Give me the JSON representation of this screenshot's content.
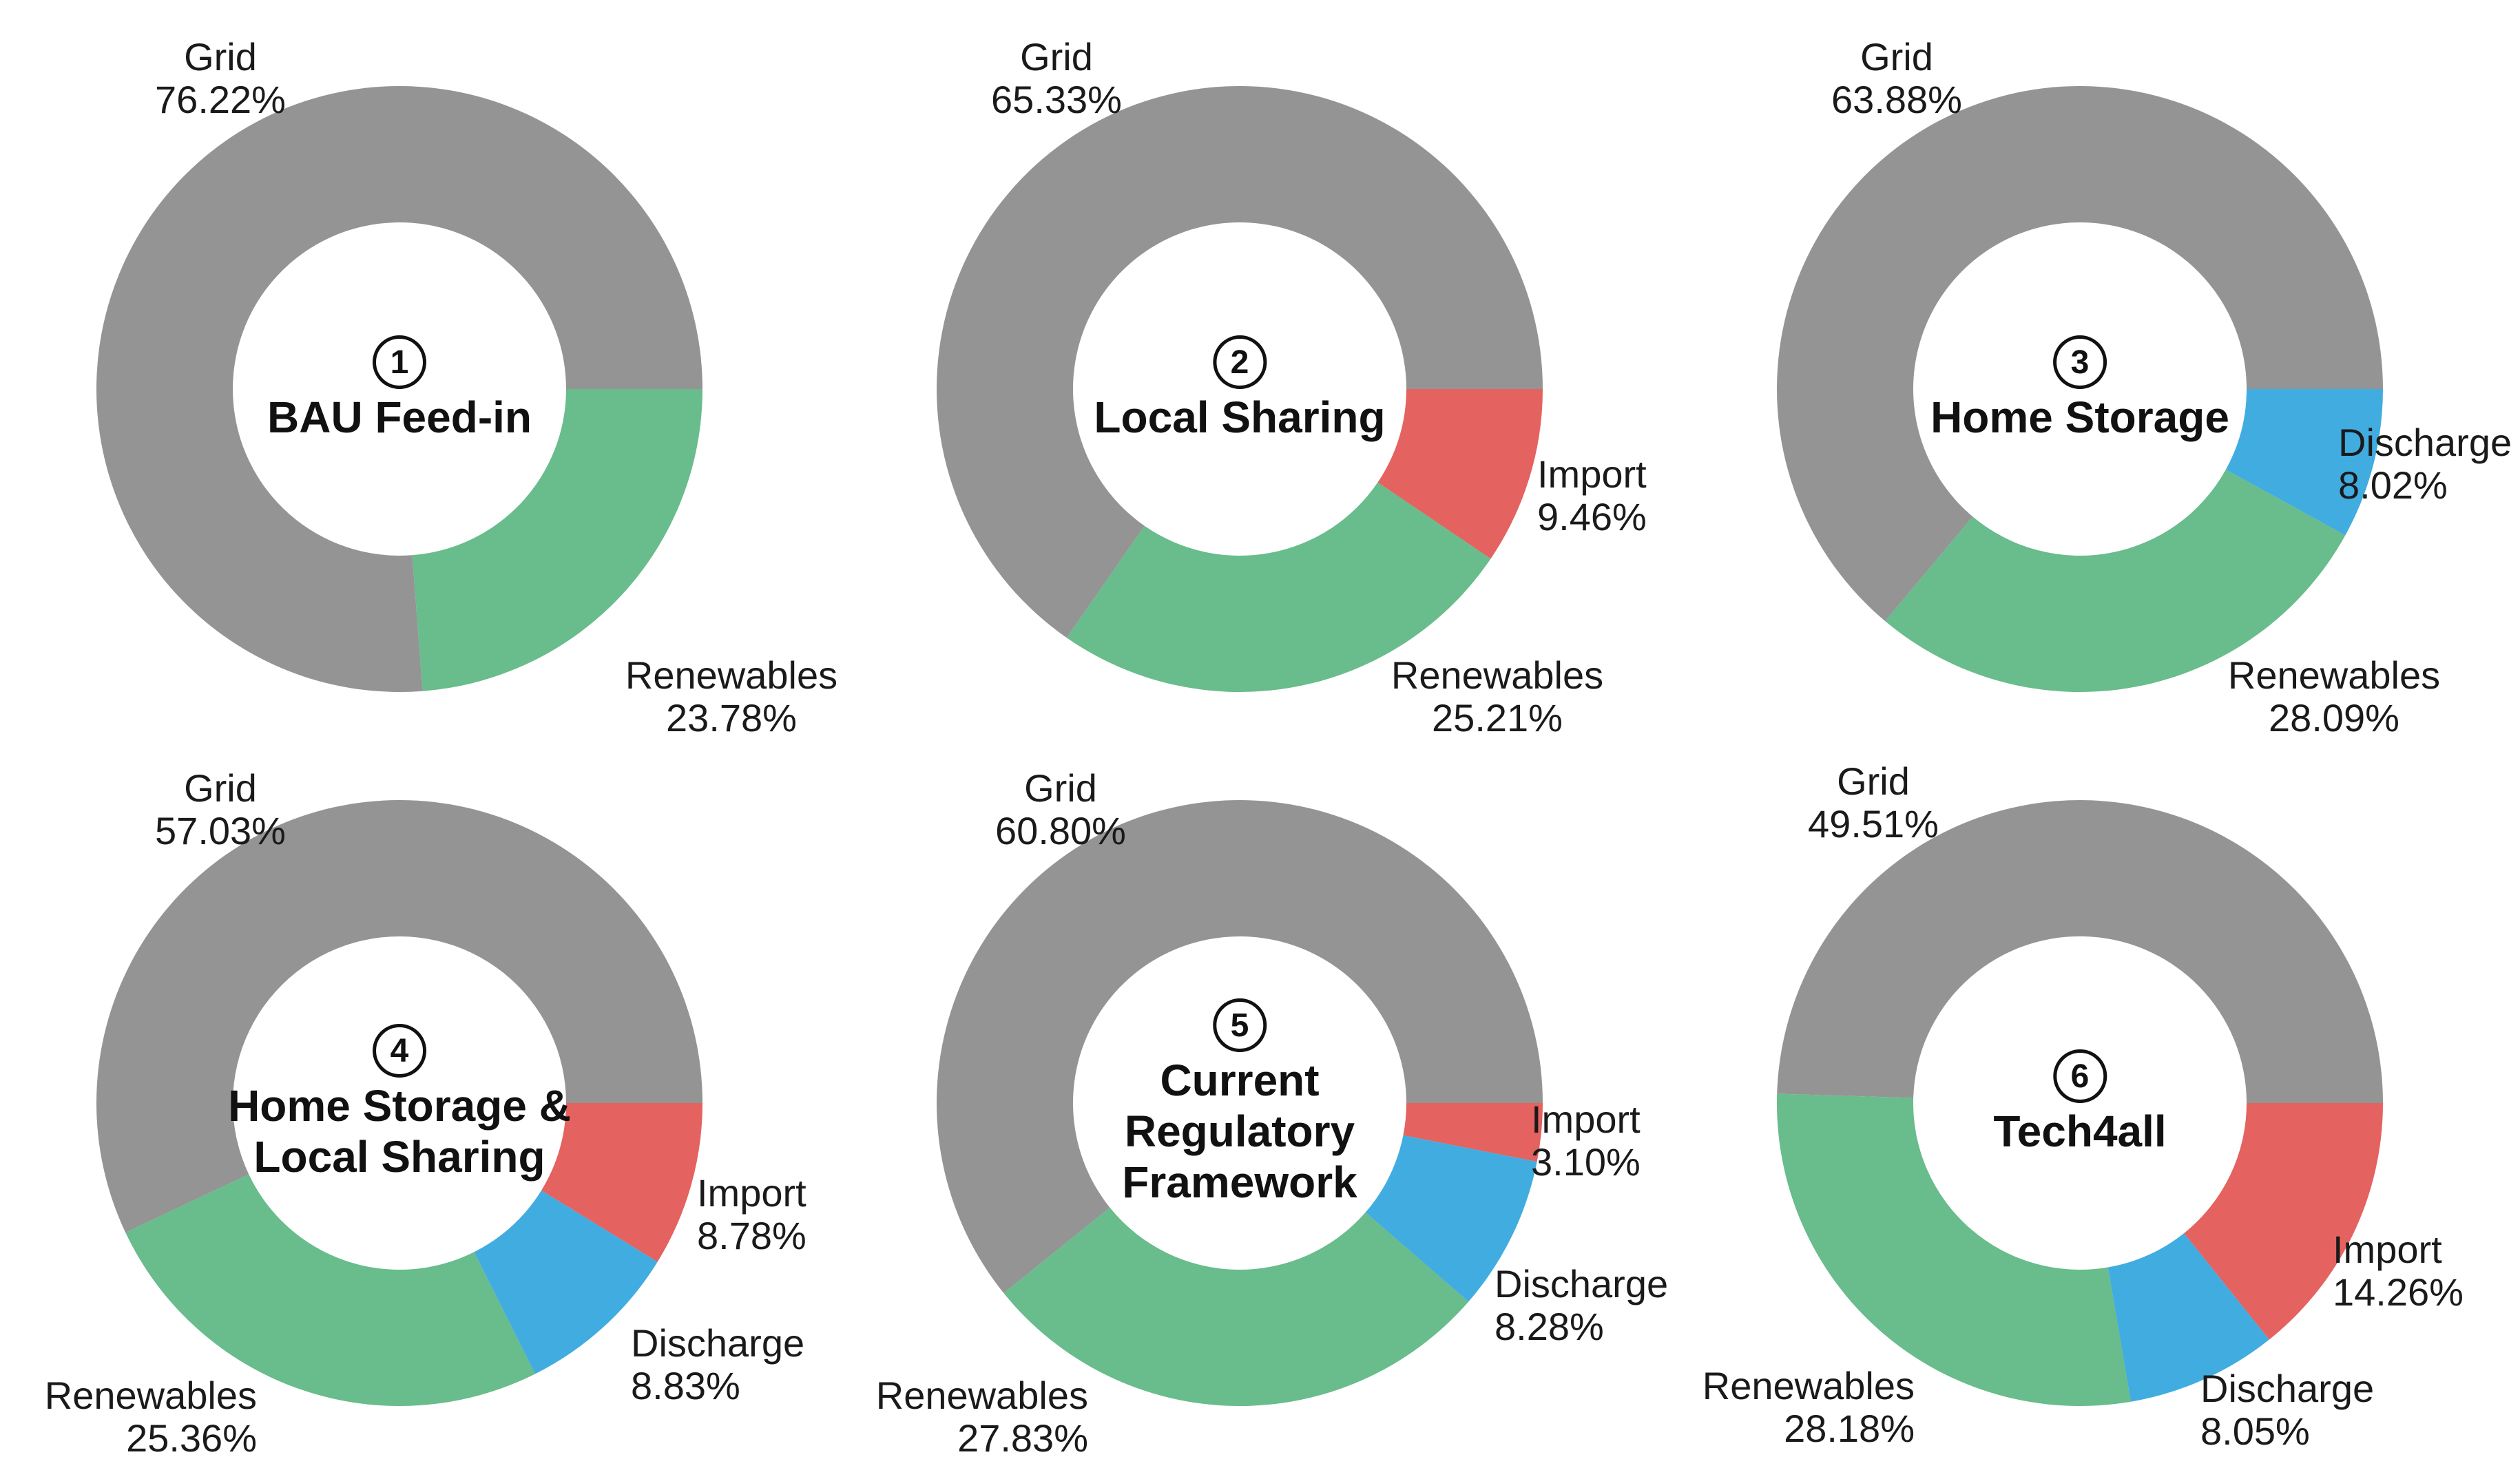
{
  "page": {
    "background": "#ffffff",
    "description": "Six donut charts of energy supply shares per scenario"
  },
  "colors": {
    "grid": "#949494",
    "renewables": "#69BC8B",
    "discharge": "#41ACE0",
    "import": "#E4625F",
    "text": "#1a1a1a",
    "title": "#111111"
  },
  "chart_data": [
    {
      "type": "pie",
      "subtype": "donut",
      "start_angle_deg": 0,
      "direction": "counterclockwise",
      "donut_hole_ratio": 0.55,
      "legend_position": "none",
      "number": "1",
      "title": "BAU Feed-in",
      "title_lines": [
        "BAU Feed-in"
      ],
      "slices": [
        {
          "name": "Grid",
          "value": 76.22,
          "pct_label": "76.22%",
          "color_key": "grid"
        },
        {
          "name": "Renewables",
          "value": 23.78,
          "pct_label": "23.78%",
          "color_key": "renewables"
        }
      ]
    },
    {
      "type": "pie",
      "subtype": "donut",
      "start_angle_deg": 0,
      "direction": "counterclockwise",
      "donut_hole_ratio": 0.55,
      "legend_position": "none",
      "number": "2",
      "title": "Local Sharing",
      "title_lines": [
        "Local Sharing"
      ],
      "slices": [
        {
          "name": "Grid",
          "value": 65.33,
          "pct_label": "65.33%",
          "color_key": "grid"
        },
        {
          "name": "Renewables",
          "value": 25.21,
          "pct_label": "25.21%",
          "color_key": "renewables"
        },
        {
          "name": "Import",
          "value": 9.46,
          "pct_label": "9.46%",
          "color_key": "import"
        }
      ]
    },
    {
      "type": "pie",
      "subtype": "donut",
      "start_angle_deg": 0,
      "direction": "counterclockwise",
      "donut_hole_ratio": 0.55,
      "legend_position": "none",
      "number": "3",
      "title": "Home Storage",
      "title_lines": [
        "Home Storage"
      ],
      "slices": [
        {
          "name": "Grid",
          "value": 63.88,
          "pct_label": "63.88%",
          "color_key": "grid"
        },
        {
          "name": "Renewables",
          "value": 28.09,
          "pct_label": "28.09%",
          "color_key": "renewables"
        },
        {
          "name": "Discharge",
          "value": 8.02,
          "pct_label": "8.02%",
          "color_key": "discharge"
        }
      ]
    },
    {
      "type": "pie",
      "subtype": "donut",
      "start_angle_deg": 0,
      "direction": "counterclockwise",
      "donut_hole_ratio": 0.55,
      "legend_position": "none",
      "number": "4",
      "title": "Home Storage & Local Sharing",
      "title_lines": [
        "Home Storage &",
        "Local Sharing"
      ],
      "slices": [
        {
          "name": "Grid",
          "value": 57.03,
          "pct_label": "57.03%",
          "color_key": "grid"
        },
        {
          "name": "Renewables",
          "value": 25.36,
          "pct_label": "25.36%",
          "color_key": "renewables"
        },
        {
          "name": "Discharge",
          "value": 8.83,
          "pct_label": "8.83%",
          "color_key": "discharge"
        },
        {
          "name": "Import",
          "value": 8.78,
          "pct_label": "8.78%",
          "color_key": "import"
        }
      ]
    },
    {
      "type": "pie",
      "subtype": "donut",
      "start_angle_deg": 0,
      "direction": "counterclockwise",
      "donut_hole_ratio": 0.55,
      "legend_position": "none",
      "number": "5",
      "title": "Current Regulatory Framework",
      "title_lines": [
        "Current",
        "Regulatory",
        "Framework"
      ],
      "slices": [
        {
          "name": "Grid",
          "value": 60.8,
          "pct_label": "60.80%",
          "color_key": "grid"
        },
        {
          "name": "Renewables",
          "value": 27.83,
          "pct_label": "27.83%",
          "color_key": "renewables"
        },
        {
          "name": "Discharge",
          "value": 8.28,
          "pct_label": "8.28%",
          "color_key": "discharge"
        },
        {
          "name": "Import",
          "value": 3.1,
          "pct_label": "3.10%",
          "color_key": "import"
        }
      ]
    },
    {
      "type": "pie",
      "subtype": "donut",
      "start_angle_deg": 0,
      "direction": "counterclockwise",
      "donut_hole_ratio": 0.55,
      "legend_position": "none",
      "number": "6",
      "title": "Tech4all",
      "title_lines": [
        "Tech4all"
      ],
      "slices": [
        {
          "name": "Grid",
          "value": 49.51,
          "pct_label": "49.51%",
          "color_key": "grid"
        },
        {
          "name": "Renewables",
          "value": 28.18,
          "pct_label": "28.18%",
          "color_key": "renewables"
        },
        {
          "name": "Discharge",
          "value": 8.05,
          "pct_label": "8.05%",
          "color_key": "discharge"
        },
        {
          "name": "Import",
          "value": 14.26,
          "pct_label": "14.26%",
          "color_key": "import"
        }
      ]
    }
  ]
}
